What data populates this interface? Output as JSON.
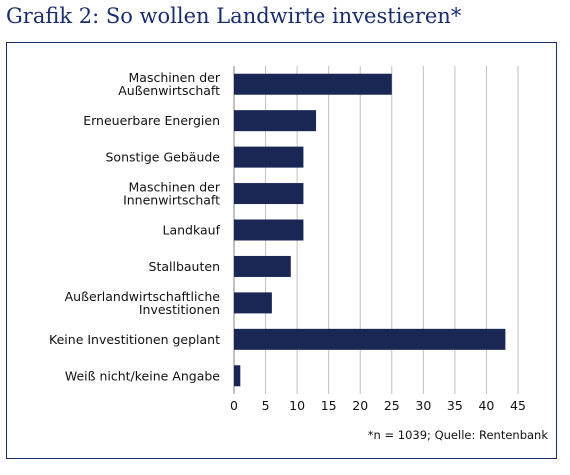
{
  "chart_data": {
    "type": "bar",
    "orientation": "horizontal",
    "title": "Grafik 2: So wollen Landwirte investieren*",
    "categories": [
      [
        "Maschinen der",
        "Außenwirtschaft"
      ],
      [
        "Erneuerbare Energien"
      ],
      [
        "Sonstige Gebäude"
      ],
      [
        "Maschinen der",
        "Innenwirtschaft"
      ],
      [
        "Landkauf"
      ],
      [
        "Stallbauten"
      ],
      [
        "Außerlandwirtschaftliche",
        "Investitionen"
      ],
      [
        "Keine Investitionen geplant"
      ],
      [
        "Weiß nicht/keine Angabe"
      ]
    ],
    "values": [
      25,
      13,
      11,
      11,
      11,
      9,
      6,
      43,
      1
    ],
    "xlim": [
      0,
      45
    ],
    "xticks": [
      0,
      5,
      10,
      15,
      20,
      25,
      30,
      35,
      40,
      45
    ],
    "grid": true,
    "bar_color": "#1a2755",
    "grid_color": "#bfbfbf",
    "footnote": "*n = 1039; Quelle: Rentenbank"
  },
  "colors": {
    "title": "#1a2d6b",
    "frame": "#1a2d6b"
  }
}
